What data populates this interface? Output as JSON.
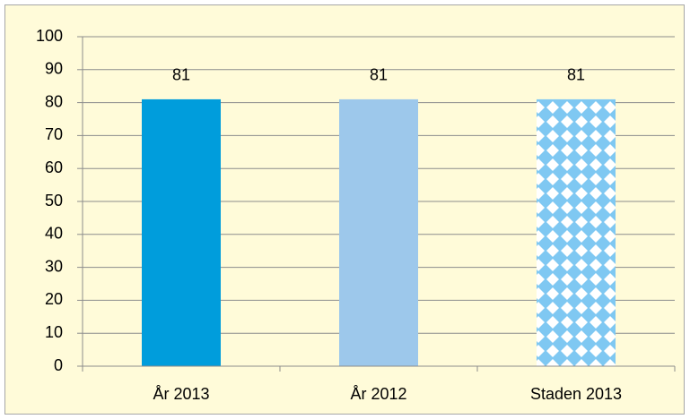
{
  "chart_data": {
    "type": "bar",
    "categories": [
      "År 2013",
      "År 2012",
      "Staden 2013"
    ],
    "values": [
      81,
      81,
      81
    ],
    "colors": [
      "#009ddc",
      "#9dc8eb",
      "#7fc8f2"
    ],
    "patterned": [
      false,
      false,
      true
    ],
    "ylim": [
      0,
      100
    ],
    "yticks": [
      0,
      10,
      20,
      30,
      40,
      50,
      60,
      70,
      80,
      90,
      100
    ],
    "grid": true
  }
}
